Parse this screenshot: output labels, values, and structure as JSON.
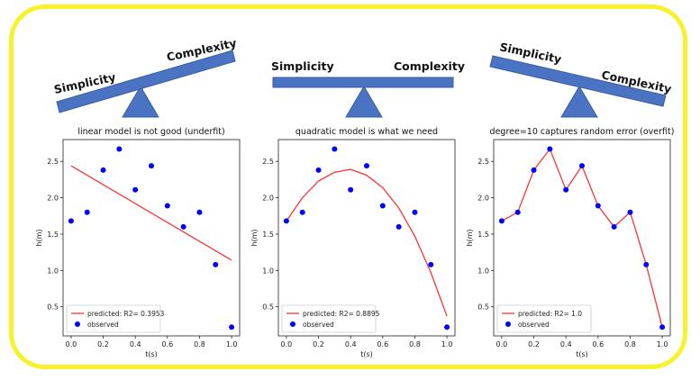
{
  "seesaws": [
    {
      "left_label": "Simplicity",
      "right_label": "Complexity",
      "tilt": "right-up"
    },
    {
      "left_label": "Simplicity",
      "right_label": "Complexity",
      "tilt": "level"
    },
    {
      "left_label": "Simplicity",
      "right_label": "Complexity",
      "tilt": "left-up"
    }
  ],
  "colors": {
    "frame": "#f7f22a",
    "seesaw": "#4a73c3",
    "observed": "#0000ff",
    "predicted": "#ff3333"
  },
  "chart_data": [
    {
      "type": "scatter",
      "title": "linear model is not good (underfit)",
      "xlabel": "t(s)",
      "ylabel": "h(m)",
      "xlim": [
        -0.05,
        1.05
      ],
      "ylim": [
        0.1,
        2.8
      ],
      "xticks": [
        "0.0",
        "0.2",
        "0.4",
        "0.6",
        "0.8",
        "1.0"
      ],
      "yticks": [
        "0.5",
        "1.0",
        "1.5",
        "2.0",
        "2.5"
      ],
      "observed": {
        "name": "observed",
        "x": [
          0.0,
          0.1,
          0.2,
          0.3,
          0.4,
          0.5,
          0.6,
          0.7,
          0.8,
          0.9,
          1.0
        ],
        "y": [
          1.68,
          1.8,
          2.38,
          2.67,
          2.11,
          2.44,
          1.89,
          1.6,
          1.8,
          1.08,
          0.22
        ]
      },
      "predicted": {
        "name": "predicted: R2= 0.3953",
        "x": [
          0.0,
          1.0
        ],
        "y": [
          2.44,
          1.14
        ]
      },
      "legend": "lower-left",
      "grid": false
    },
    {
      "type": "scatter",
      "title": "quadratic model is what we need",
      "xlabel": "t(s)",
      "ylabel": "h(m)",
      "xlim": [
        -0.05,
        1.05
      ],
      "ylim": [
        0.1,
        2.8
      ],
      "xticks": [
        "0.0",
        "0.2",
        "0.4",
        "0.6",
        "0.8",
        "1.0"
      ],
      "yticks": [
        "0.5",
        "1.0",
        "1.5",
        "2.0",
        "2.5"
      ],
      "observed": {
        "name": "observed",
        "x": [
          0.0,
          0.1,
          0.2,
          0.3,
          0.4,
          0.5,
          0.6,
          0.7,
          0.8,
          0.9,
          1.0
        ],
        "y": [
          1.68,
          1.8,
          2.38,
          2.67,
          2.11,
          2.44,
          1.89,
          1.6,
          1.8,
          1.08,
          0.22
        ]
      },
      "predicted": {
        "name": "predicted: R2= 0.8895",
        "x": [
          0.0,
          0.1,
          0.2,
          0.3,
          0.4,
          0.5,
          0.6,
          0.7,
          0.8,
          0.9,
          1.0
        ],
        "y": [
          1.68,
          2.0,
          2.23,
          2.35,
          2.39,
          2.31,
          2.14,
          1.86,
          1.47,
          0.97,
          0.37
        ]
      },
      "legend": "lower-left",
      "grid": false
    },
    {
      "type": "scatter",
      "title": "degree=10 captures random error (overfit)",
      "xlabel": "t(s)",
      "ylabel": "h(m)",
      "xlim": [
        -0.05,
        1.05
      ],
      "ylim": [
        0.1,
        2.8
      ],
      "xticks": [
        "0.0",
        "0.2",
        "0.4",
        "0.6",
        "0.8",
        "1.0"
      ],
      "yticks": [
        "0.5",
        "1.0",
        "1.5",
        "2.0",
        "2.5"
      ],
      "observed": {
        "name": "observed",
        "x": [
          0.0,
          0.1,
          0.2,
          0.3,
          0.4,
          0.5,
          0.6,
          0.7,
          0.8,
          0.9,
          1.0
        ],
        "y": [
          1.68,
          1.8,
          2.38,
          2.67,
          2.11,
          2.44,
          1.89,
          1.6,
          1.8,
          1.08,
          0.22
        ]
      },
      "predicted": {
        "name": "predicted: R2= 1.0",
        "x": [
          0.0,
          0.1,
          0.2,
          0.3,
          0.4,
          0.5,
          0.6,
          0.7,
          0.8,
          0.9,
          1.0
        ],
        "y": [
          1.68,
          1.8,
          2.38,
          2.67,
          2.11,
          2.44,
          1.89,
          1.6,
          1.8,
          1.08,
          0.22
        ]
      },
      "legend": "lower-left",
      "grid": false
    }
  ]
}
